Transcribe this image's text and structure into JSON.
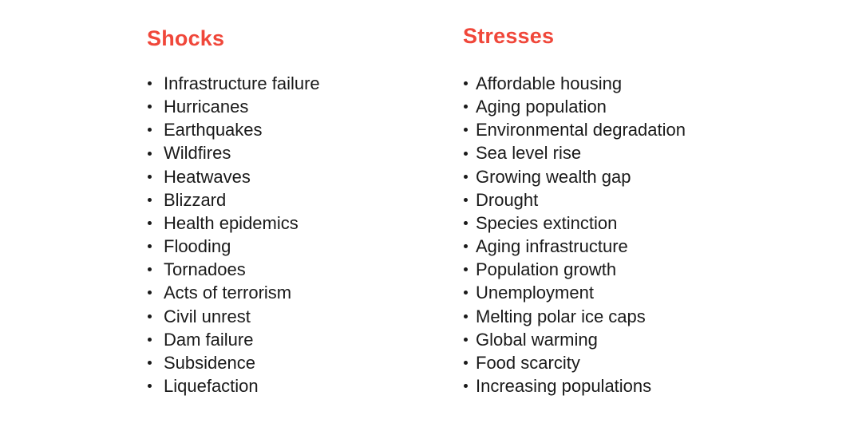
{
  "accent_color": "#f0473a",
  "shocks": {
    "title": "Shocks",
    "items": [
      "Infrastructure failure",
      "Hurricanes",
      "Earthquakes",
      "Wildfires",
      "Heatwaves",
      "Blizzard",
      "Health epidemics",
      "Flooding",
      "Tornadoes",
      "Acts of terrorism",
      "Civil unrest",
      "Dam failure",
      "Subsidence",
      "Liquefaction"
    ]
  },
  "stresses": {
    "title": "Stresses",
    "items": [
      "Affordable housing",
      "Aging population",
      "Environmental degradation",
      "Sea level rise",
      "Growing wealth gap",
      "Drought",
      "Species extinction",
      "Aging infrastructure",
      "Population growth",
      "Unemployment",
      "Melting polar ice caps",
      "Global warming",
      "Food scarcity",
      "Increasing populations"
    ]
  }
}
